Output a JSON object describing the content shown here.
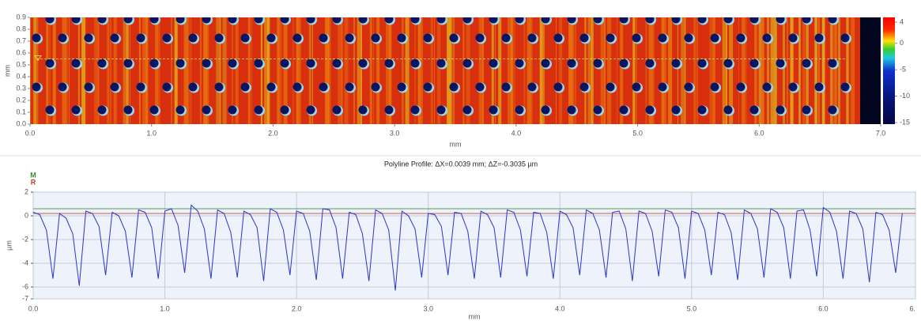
{
  "chart_data": [
    {
      "type": "heatmap",
      "xlabel": "mm",
      "ylabel": "mm",
      "xlim": [
        0,
        7
      ],
      "ylim": [
        0,
        0.9
      ],
      "xticks": [
        {
          "value": 0,
          "label": "0.0"
        },
        {
          "value": 1,
          "label": "1.0"
        },
        {
          "value": 2,
          "label": "2.0"
        },
        {
          "value": 3,
          "label": "3.0"
        },
        {
          "value": 4,
          "label": "4.0"
        },
        {
          "value": 5,
          "label": "5.0"
        },
        {
          "value": 6,
          "label": "6.0"
        },
        {
          "value": 7,
          "label": "7.0"
        }
      ],
      "yticks": [
        {
          "value": 0,
          "label": "0.0"
        },
        0.1,
        0.2,
        0.3,
        0.4,
        0.5,
        0.6,
        0.7,
        0.8,
        0.9
      ],
      "profile_y": 0.55,
      "colorbar": {
        "lim": [
          -15.3,
          4.9
        ],
        "ticks": [
          4,
          0,
          -5,
          -10,
          -15
        ]
      }
    },
    {
      "type": "line",
      "title": "Polyline Profile: ΔX=0.0039 mm; ΔZ=-0.3035 µm",
      "xlabel": "mm",
      "ylabel": "µm",
      "xlim": [
        0,
        6.7
      ],
      "ylim": [
        -7,
        2
      ],
      "xticks": [
        {
          "value": 0,
          "label": "0.0"
        },
        {
          "value": 1,
          "label": "1.0"
        },
        {
          "value": 2,
          "label": "2.0"
        },
        {
          "value": 3,
          "label": "3.0"
        },
        {
          "value": 4,
          "label": "4.0"
        },
        {
          "value": 5,
          "label": "5.0"
        },
        {
          "value": 6,
          "label": "6.0"
        },
        {
          "value": 6.7,
          "label": "6."
        }
      ],
      "yticks": [
        2,
        0,
        -2,
        -4,
        -6,
        -7
      ],
      "grid": true,
      "reference_lines": [
        {
          "label": "M",
          "value": 0.6,
          "color": "#3a8a2a"
        },
        {
          "label": "R",
          "value": 0.2,
          "color": "#b8402a"
        }
      ],
      "x": [
        0,
        0.05,
        0.1,
        0.15,
        0.2,
        0.25,
        0.3,
        0.35,
        0.4,
        0.45,
        0.5,
        0.55,
        0.6,
        0.65,
        0.7,
        0.75,
        0.8,
        0.85,
        0.9,
        0.95,
        1.0,
        1.05,
        1.1,
        1.15,
        1.2,
        1.25,
        1.3,
        1.35,
        1.4,
        1.45,
        1.5,
        1.55,
        1.6,
        1.65,
        1.7,
        1.75,
        1.8,
        1.85,
        1.9,
        1.95,
        2.0,
        2.05,
        2.1,
        2.15,
        2.2,
        2.25,
        2.3,
        2.35,
        2.4,
        2.45,
        2.5,
        2.55,
        2.6,
        2.65,
        2.7,
        2.75,
        2.8,
        2.85,
        2.9,
        2.95,
        3.0,
        3.05,
        3.1,
        3.15,
        3.2,
        3.25,
        3.3,
        3.35,
        3.4,
        3.45,
        3.5,
        3.55,
        3.6,
        3.65,
        3.7,
        3.75,
        3.8,
        3.85,
        3.9,
        3.95,
        4.0,
        4.05,
        4.1,
        4.15,
        4.2,
        4.25,
        4.3,
        4.35,
        4.4,
        4.45,
        4.5,
        4.55,
        4.6,
        4.65,
        4.7,
        4.75,
        4.8,
        4.85,
        4.9,
        4.95,
        5.0,
        5.05,
        5.1,
        5.15,
        5.2,
        5.25,
        5.3,
        5.35,
        5.4,
        5.45,
        5.5,
        5.55,
        5.6,
        5.65,
        5.7,
        5.75,
        5.8,
        5.85,
        5.9,
        5.95,
        6.0,
        6.05,
        6.1,
        6.15,
        6.2,
        6.25,
        6.3,
        6.35,
        6.4,
        6.45,
        6.5,
        6.55,
        6.6
      ],
      "series": [
        {
          "color": "#2b35c8",
          "values": [
            0.3,
            0.1,
            -1.2,
            -5.3,
            0.2,
            -0.2,
            -1.5,
            -5.9,
            0.4,
            0.2,
            -0.9,
            -5.0,
            0.3,
            0.0,
            -1.3,
            -5.2,
            0.5,
            0.3,
            -1.0,
            -5.3,
            0.4,
            0.6,
            -0.8,
            -4.8,
            0.9,
            0.4,
            -1.1,
            -5.3,
            0.5,
            0.2,
            -1.4,
            -5.2,
            0.4,
            0.1,
            -1.0,
            -5.5,
            0.6,
            0.3,
            -1.2,
            -5.0,
            0.4,
            0.2,
            -1.3,
            -5.4,
            0.6,
            0.5,
            -1.0,
            -5.3,
            0.3,
            0.1,
            -1.5,
            -5.5,
            0.5,
            0.2,
            -1.2,
            -6.3,
            0.4,
            0.0,
            -1.1,
            -5.2,
            0.2,
            0.1,
            -0.9,
            -5.0,
            0.3,
            0.2,
            -1.3,
            -5.3,
            0.4,
            0.1,
            -1.0,
            -5.2,
            0.5,
            0.3,
            -1.2,
            -5.1,
            0.3,
            0.2,
            -1.4,
            -5.3,
            0.4,
            0.1,
            -1.0,
            -5.0,
            0.5,
            0.2,
            -1.2,
            -5.2,
            0.3,
            0.4,
            -1.1,
            -5.5,
            0.4,
            0.2,
            -1.3,
            -5.1,
            0.5,
            0.3,
            -1.0,
            -5.3,
            0.4,
            0.2,
            -1.2,
            -5.0,
            0.3,
            0.1,
            -1.4,
            -5.4,
            0.5,
            0.2,
            -1.1,
            -5.2,
            0.6,
            0.3,
            -1.0,
            -5.3,
            0.4,
            0.5,
            -1.2,
            -5.1,
            0.7,
            0.3,
            -1.3,
            -5.3,
            0.4,
            0.2,
            -1.1,
            -5.6,
            0.3,
            0.1,
            -1.2,
            -4.8,
            0.2
          ]
        }
      ]
    }
  ]
}
